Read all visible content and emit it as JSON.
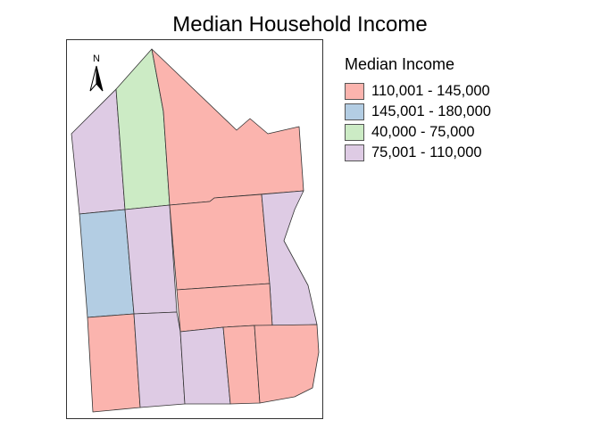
{
  "title": "Median Household Income",
  "north_arrow": {
    "label": "N",
    "icon": "north-arrow-icon"
  },
  "legend": {
    "title": "Median Income",
    "items": [
      {
        "label": "110,001 - 145,000",
        "color": "#fbb4ae"
      },
      {
        "label": "145,001 - 180,000",
        "color": "#b3cde3"
      },
      {
        "label": "40,000 - 75,000",
        "color": "#ccebc5"
      },
      {
        "label": "75,001 - 110,000",
        "color": "#decbe4"
      }
    ]
  }
}
